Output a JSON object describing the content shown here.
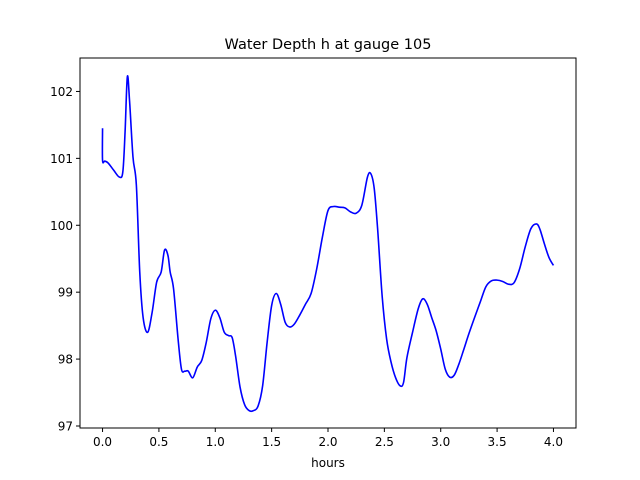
{
  "chart_data": {
    "type": "line",
    "title": "Water Depth h at gauge 105",
    "xlabel": "hours",
    "ylabel": "",
    "xlim": [
      -0.2,
      4.2
    ],
    "ylim": [
      96.97,
      102.5
    ],
    "xticks": [
      0.0,
      0.5,
      1.0,
      1.5,
      2.0,
      2.5,
      3.0,
      3.5,
      4.0
    ],
    "xtick_labels": [
      "0.0",
      "0.5",
      "1.0",
      "1.5",
      "2.0",
      "2.5",
      "3.0",
      "3.5",
      "4.0"
    ],
    "yticks": [
      97,
      98,
      99,
      100,
      101,
      102
    ],
    "ytick_labels": [
      "97",
      "98",
      "99",
      "100",
      "101",
      "102"
    ],
    "grid": false,
    "legend": "none",
    "series": [
      {
        "color": "#0000ff",
        "x": [
          0.0,
          0.0,
          0.02,
          0.05,
          0.1,
          0.15,
          0.18,
          0.2,
          0.22,
          0.24,
          0.27,
          0.3,
          0.33,
          0.36,
          0.4,
          0.44,
          0.48,
          0.52,
          0.55,
          0.58,
          0.6,
          0.63,
          0.67,
          0.7,
          0.73,
          0.76,
          0.8,
          0.84,
          0.88,
          0.92,
          0.96,
          1.0,
          1.04,
          1.08,
          1.12,
          1.15,
          1.18,
          1.22,
          1.26,
          1.3,
          1.34,
          1.38,
          1.42,
          1.46,
          1.5,
          1.54,
          1.58,
          1.62,
          1.66,
          1.7,
          1.75,
          1.8,
          1.85,
          1.9,
          1.95,
          2.0,
          2.05,
          2.1,
          2.15,
          2.2,
          2.25,
          2.3,
          2.35,
          2.38,
          2.41,
          2.44,
          2.48,
          2.52,
          2.56,
          2.6,
          2.64,
          2.67,
          2.7,
          2.75,
          2.8,
          2.84,
          2.88,
          2.92,
          2.96,
          3.0,
          3.04,
          3.08,
          3.12,
          3.16,
          3.2,
          3.25,
          3.3,
          3.35,
          3.4,
          3.45,
          3.5,
          3.55,
          3.6,
          3.65,
          3.7,
          3.75,
          3.8,
          3.85,
          3.88,
          3.92,
          3.96,
          4.0
        ],
        "y": [
          101.45,
          100.97,
          100.96,
          100.93,
          100.82,
          100.72,
          100.8,
          101.4,
          102.22,
          101.85,
          101.02,
          100.6,
          99.3,
          98.62,
          98.4,
          98.7,
          99.15,
          99.3,
          99.63,
          99.55,
          99.3,
          99.05,
          98.3,
          97.85,
          97.82,
          97.82,
          97.72,
          97.88,
          97.98,
          98.25,
          98.6,
          98.73,
          98.62,
          98.4,
          98.35,
          98.32,
          98.05,
          97.58,
          97.32,
          97.23,
          97.23,
          97.3,
          97.6,
          98.25,
          98.8,
          98.98,
          98.82,
          98.55,
          98.48,
          98.52,
          98.66,
          98.82,
          98.98,
          99.35,
          99.82,
          100.22,
          100.28,
          100.27,
          100.26,
          100.2,
          100.18,
          100.3,
          100.72,
          100.77,
          100.55,
          99.95,
          98.95,
          98.3,
          97.95,
          97.72,
          97.6,
          97.65,
          98.02,
          98.4,
          98.75,
          98.9,
          98.82,
          98.62,
          98.42,
          98.15,
          97.85,
          97.73,
          97.76,
          97.92,
          98.12,
          98.38,
          98.62,
          98.85,
          99.08,
          99.17,
          99.18,
          99.16,
          99.12,
          99.14,
          99.35,
          99.68,
          99.95,
          100.02,
          99.94,
          99.72,
          99.52,
          99.4
        ]
      }
    ]
  }
}
